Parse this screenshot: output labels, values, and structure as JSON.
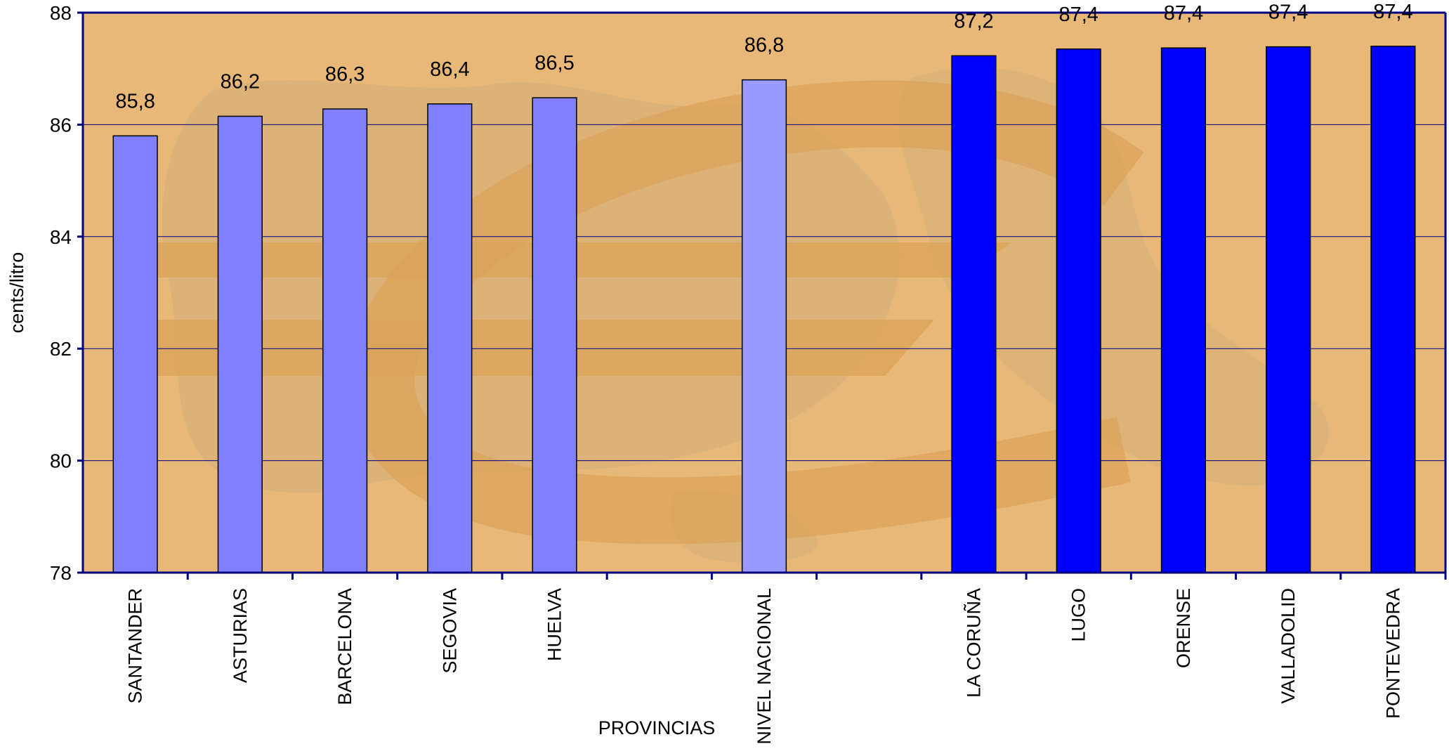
{
  "chart_data": {
    "type": "bar",
    "title": "",
    "xlabel": "PROVINCIAS",
    "ylabel": "cents/litro",
    "ylim": [
      78,
      88
    ],
    "yticks": [
      "78",
      "80",
      "82",
      "84",
      "86",
      "88"
    ],
    "grid": true,
    "legend": "none",
    "slots": 13,
    "categories": [
      {
        "label": "SANTANDER",
        "value": 85.8,
        "value_label": "85,8",
        "slot": 0,
        "color": "#8080ff"
      },
      {
        "label": "ASTURIAS",
        "value": 86.15,
        "value_label": "86,2",
        "slot": 1,
        "color": "#8080ff"
      },
      {
        "label": "BARCELONA",
        "value": 86.28,
        "value_label": "86,3",
        "slot": 2,
        "color": "#8080ff"
      },
      {
        "label": "SEGOVIA",
        "value": 86.37,
        "value_label": "86,4",
        "slot": 3,
        "color": "#8080ff"
      },
      {
        "label": "HUELVA",
        "value": 86.48,
        "value_label": "86,5",
        "slot": 4,
        "color": "#8080ff"
      },
      {
        "label": "NIVEL NACIONAL",
        "value": 86.8,
        "value_label": "86,8",
        "slot": 6,
        "color": "#9999ff"
      },
      {
        "label": "LA CORUÑA",
        "value": 87.23,
        "value_label": "87,2",
        "slot": 8,
        "color": "#0000ff"
      },
      {
        "label": "LUGO",
        "value": 87.35,
        "value_label": "87,4",
        "slot": 9,
        "color": "#0000ff"
      },
      {
        "label": "ORENSE",
        "value": 87.37,
        "value_label": "87,4",
        "slot": 10,
        "color": "#0000ff"
      },
      {
        "label": "VALLADOLID",
        "value": 87.39,
        "value_label": "87,4",
        "slot": 11,
        "color": "#0000ff"
      },
      {
        "label": "PONTEVEDRA",
        "value": 87.4,
        "value_label": "87,4",
        "slot": 12,
        "color": "#0000ff"
      }
    ],
    "colors": {
      "plot_background": "#e8b878",
      "axis": "#000080",
      "gridline": "#000080",
      "bar_outline": "#000000"
    }
  }
}
